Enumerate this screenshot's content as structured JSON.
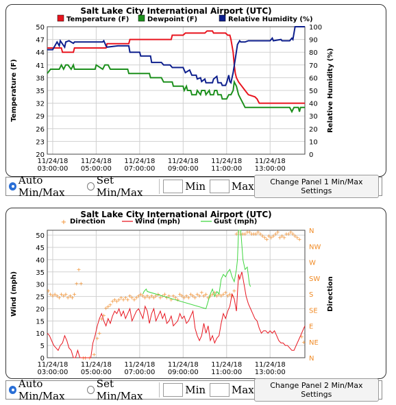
{
  "panel1": {
    "controls": {
      "auto_label": "Auto Min/Max",
      "set_label": "Set Min/Max",
      "min_label": "Min",
      "max_label": "Max",
      "button_label": "Change Panel 1 Min/Max Settings",
      "selected": "auto"
    }
  },
  "panel2": {
    "controls": {
      "auto_label": "Auto Min/Max",
      "set_label": "Set Min/Max",
      "min_label": "Min",
      "max_label": "Max",
      "button_label": "Change Panel 2 Min/Max Settings",
      "selected": "auto"
    }
  },
  "chart_data": [
    {
      "type": "line",
      "title": "Salt Lake City International Airport  (UTC)",
      "ylabel": "Temperature (F)",
      "y2label": "Relative Humidity (%)",
      "ylim": [
        20,
        50
      ],
      "yticks": [
        20,
        23,
        26,
        29,
        32,
        35,
        38,
        41,
        44,
        47,
        50
      ],
      "y2lim": [
        0,
        100
      ],
      "y2ticks": [
        0,
        10,
        20,
        30,
        40,
        50,
        60,
        70,
        80,
        90,
        100
      ],
      "xlim": [
        2.75,
        14.6
      ],
      "xticks": [
        {
          "x": 3,
          "label": [
            "11/24/18",
            "03:00:00"
          ]
        },
        {
          "x": 5,
          "label": [
            "11/24/18",
            "05:00:00"
          ]
        },
        {
          "x": 7,
          "label": [
            "11/24/18",
            "07:00:00"
          ]
        },
        {
          "x": 9,
          "label": [
            "11/24/18",
            "09:00:00"
          ]
        },
        {
          "x": 11,
          "label": [
            "11/24/18",
            "11:00:00"
          ]
        },
        {
          "x": 13,
          "label": [
            "11/24/18",
            "13:00:00"
          ]
        }
      ],
      "grid": true,
      "legend_position": "top",
      "series": [
        {
          "name": "Temperature (F)",
          "axis": "left",
          "color": "#e8141e",
          "x": [
            2.75,
            3.4,
            3.45,
            3.95,
            4.0,
            5.45,
            5.5,
            6.5,
            6.55,
            8.45,
            8.5,
            9.0,
            9.1,
            10.0,
            10.1,
            10.35,
            10.4,
            10.95,
            11.05,
            11.15,
            11.2,
            11.3,
            11.35,
            11.4,
            11.45,
            11.55,
            11.7,
            11.85,
            12.0,
            12.3,
            12.4,
            12.45,
            12.5,
            14.6
          ],
          "y": [
            45,
            45,
            44,
            44,
            45,
            45,
            46,
            46,
            47,
            47,
            48,
            48,
            48.5,
            48.5,
            49,
            49,
            48.5,
            48.5,
            48,
            48,
            47,
            44,
            41,
            39,
            38,
            37,
            36,
            35,
            34,
            33.5,
            33,
            32.5,
            32,
            32
          ]
        },
        {
          "name": "Dewpoint (F)",
          "axis": "left",
          "color": "#1c8f1c",
          "x": [
            2.75,
            2.9,
            3.0,
            3.3,
            3.4,
            3.5,
            3.6,
            3.7,
            3.85,
            3.95,
            4.0,
            4.95,
            5.0,
            5.3,
            5.4,
            5.55,
            5.65,
            6.45,
            6.5,
            7.45,
            7.5,
            8.0,
            8.1,
            8.5,
            8.55,
            9.0,
            9.05,
            9.15,
            9.2,
            9.35,
            9.4,
            9.6,
            9.65,
            9.8,
            9.85,
            10.0,
            10.05,
            10.2,
            10.25,
            10.4,
            10.45,
            10.55,
            10.6,
            10.75,
            10.8,
            11.0,
            11.1,
            11.2,
            11.3,
            11.35,
            11.45,
            11.55,
            11.65,
            11.75,
            11.85,
            12.0,
            12.5,
            13.9,
            14.0,
            14.1,
            14.3,
            14.35,
            14.4,
            14.6
          ],
          "y": [
            39,
            40,
            40,
            40,
            41,
            40,
            41,
            41,
            40,
            41,
            40,
            40,
            41,
            40,
            41,
            41,
            40,
            40,
            39,
            39,
            38,
            38,
            37,
            37,
            36,
            36,
            35,
            36,
            35,
            35,
            34,
            34,
            35,
            34,
            35,
            35,
            34,
            35,
            34,
            34,
            35,
            35,
            34,
            34,
            33,
            33,
            34,
            34,
            35,
            37,
            36,
            34,
            33,
            32,
            31,
            31,
            31,
            31,
            30,
            31,
            31,
            30,
            31,
            31
          ]
        },
        {
          "name": "Relative Humidity (%)",
          "axis": "right",
          "color": "#0c1e8c",
          "x": [
            2.75,
            3.0,
            3.2,
            3.3,
            3.35,
            3.55,
            3.6,
            3.75,
            3.95,
            4.0,
            5.3,
            5.35,
            5.45,
            5.5,
            6.0,
            6.5,
            6.55,
            7.0,
            7.05,
            7.5,
            7.55,
            8.0,
            8.1,
            8.4,
            8.5,
            9.0,
            9.1,
            9.3,
            9.4,
            9.6,
            9.65,
            9.8,
            9.85,
            10.0,
            10.05,
            10.35,
            10.4,
            10.55,
            10.6,
            10.75,
            10.8,
            10.95,
            11.0,
            11.1,
            11.15,
            11.2,
            11.3,
            11.4,
            11.5,
            11.6,
            11.65,
            11.85,
            12.0,
            12.5,
            13.0,
            13.1,
            13.15,
            13.5,
            13.55,
            13.9,
            14.0,
            14.05,
            14.15,
            14.2,
            14.6
          ],
          "y": [
            82,
            82,
            88,
            85,
            89,
            84,
            88,
            89,
            87,
            88,
            88,
            89,
            85,
            84,
            85,
            85,
            80,
            80,
            77,
            77,
            72,
            72,
            70,
            70,
            68,
            68,
            64,
            66,
            62,
            62,
            59,
            60,
            57,
            59,
            56,
            56,
            59,
            61,
            56,
            56,
            54,
            54,
            56,
            62,
            57,
            56,
            64,
            75,
            86,
            89,
            88,
            88,
            89,
            89,
            89,
            91,
            89,
            90,
            89,
            89,
            91,
            90,
            100,
            100,
            100
          ]
        }
      ]
    },
    {
      "type": "line",
      "title": "Salt Lake City International Airport  (UTC)",
      "ylabel": "Wind (mph)",
      "y2label": "Direction",
      "ylim": [
        0,
        52
      ],
      "yticks": [
        0,
        5,
        10,
        15,
        20,
        25,
        30,
        35,
        40,
        45,
        50
      ],
      "y2lim": [
        0,
        360
      ],
      "y2ticks": [
        {
          "v": 0,
          "label": "N"
        },
        {
          "v": 45,
          "label": "NE"
        },
        {
          "v": 90,
          "label": "E"
        },
        {
          "v": 135,
          "label": "SE"
        },
        {
          "v": 180,
          "label": "S"
        },
        {
          "v": 225,
          "label": "SW"
        },
        {
          "v": 270,
          "label": "W"
        },
        {
          "v": 315,
          "label": "NW"
        },
        {
          "v": 360,
          "label": "N"
        }
      ],
      "xlim": [
        2.75,
        14.6
      ],
      "xticks": [
        {
          "x": 3,
          "label": [
            "11/24/18",
            "03:00:00"
          ]
        },
        {
          "x": 5,
          "label": [
            "11/24/18",
            "05:00:00"
          ]
        },
        {
          "x": 7,
          "label": [
            "11/24/18",
            "07:00:00"
          ]
        },
        {
          "x": 9,
          "label": [
            "11/24/18",
            "09:00:00"
          ]
        },
        {
          "x": 11,
          "label": [
            "11/24/18",
            "11:00:00"
          ]
        },
        {
          "x": 13,
          "label": [
            "11/24/18",
            "13:00:00"
          ]
        }
      ],
      "grid": true,
      "legend_position": "top",
      "series": [
        {
          "name": "Direction",
          "axis": "right",
          "kind": "points",
          "color": "#f08a24",
          "x": [
            2.8,
            2.9,
            3.0,
            3.1,
            3.2,
            3.3,
            3.4,
            3.5,
            3.6,
            3.7,
            3.8,
            3.9,
            4.0,
            4.1,
            4.2,
            4.3,
            4.4,
            4.5,
            4.7,
            4.9,
            5.05,
            5.15,
            5.25,
            5.35,
            5.45,
            5.55,
            5.65,
            5.75,
            5.85,
            5.95,
            6.05,
            6.15,
            6.25,
            6.35,
            6.45,
            6.55,
            6.65,
            6.75,
            6.85,
            6.95,
            7.05,
            7.15,
            7.25,
            7.35,
            7.45,
            7.55,
            7.65,
            7.75,
            7.85,
            7.95,
            8.05,
            8.15,
            8.25,
            8.35,
            8.45,
            8.55,
            8.65,
            8.75,
            8.85,
            8.95,
            9.05,
            9.15,
            9.25,
            9.35,
            9.45,
            9.55,
            9.65,
            9.75,
            9.85,
            9.95,
            10.05,
            10.15,
            10.25,
            10.35,
            10.45,
            10.55,
            10.65,
            10.75,
            10.85,
            10.95,
            11.05,
            11.15,
            11.25,
            11.35,
            11.45,
            11.55,
            11.65,
            11.75,
            11.85,
            11.95,
            12.05,
            12.15,
            12.25,
            12.35,
            12.45,
            12.55,
            12.65,
            12.75,
            12.85,
            12.95,
            13.05,
            13.15,
            13.25,
            13.35,
            13.45,
            13.55,
            13.65,
            13.75,
            13.85,
            13.95,
            14.05,
            14.15,
            14.25,
            14.35,
            14.45,
            14.55
          ],
          "y": [
            190,
            180,
            175,
            180,
            175,
            170,
            180,
            175,
            180,
            170,
            175,
            170,
            180,
            210,
            250,
            210,
            0,
            0,
            0,
            10,
            55,
            70,
            110,
            120,
            140,
            145,
            150,
            160,
            165,
            160,
            165,
            170,
            165,
            170,
            165,
            175,
            170,
            165,
            170,
            175,
            180,
            175,
            170,
            175,
            170,
            175,
            170,
            175,
            180,
            170,
            175,
            180,
            170,
            175,
            165,
            175,
            170,
            165,
            180,
            175,
            170,
            175,
            170,
            180,
            175,
            170,
            180,
            175,
            185,
            175,
            180,
            170,
            175,
            180,
            185,
            175,
            180,
            175,
            180,
            185,
            175,
            180,
            175,
            190,
            350,
            355,
            350,
            350,
            350,
            355,
            355,
            350,
            350,
            350,
            355,
            350,
            345,
            340,
            335,
            345,
            340,
            345,
            350,
            355,
            340,
            345,
            340,
            350,
            350,
            355,
            350,
            345,
            340,
            335,
            60,
            45
          ]
        },
        {
          "name": "Wind (mph)",
          "axis": "left",
          "color": "#e8141e",
          "x": [
            2.75,
            2.85,
            2.95,
            3.05,
            3.15,
            3.25,
            3.35,
            3.45,
            3.55,
            3.65,
            3.75,
            3.85,
            3.95,
            4.05,
            4.15,
            4.25,
            4.3,
            4.45,
            4.55,
            4.65,
            4.75,
            4.85,
            4.95,
            5.05,
            5.15,
            5.25,
            5.35,
            5.45,
            5.55,
            5.65,
            5.75,
            5.85,
            5.95,
            6.05,
            6.15,
            6.25,
            6.35,
            6.45,
            6.55,
            6.65,
            6.75,
            6.85,
            6.95,
            7.05,
            7.15,
            7.25,
            7.35,
            7.45,
            7.55,
            7.65,
            7.75,
            7.85,
            7.95,
            8.05,
            8.15,
            8.25,
            8.35,
            8.45,
            8.55,
            8.65,
            8.75,
            8.85,
            8.95,
            9.05,
            9.15,
            9.25,
            9.35,
            9.45,
            9.55,
            9.65,
            9.75,
            9.85,
            9.95,
            10.05,
            10.15,
            10.25,
            10.35,
            10.45,
            10.55,
            10.65,
            10.75,
            10.85,
            10.95,
            11.05,
            11.15,
            11.25,
            11.35,
            11.45,
            11.55,
            11.6,
            11.7,
            11.8,
            11.9,
            12.0,
            12.1,
            12.2,
            12.3,
            12.4,
            12.5,
            12.6,
            12.7,
            12.8,
            12.9,
            13.0,
            13.1,
            13.2,
            13.3,
            13.4,
            13.5,
            13.6,
            13.7,
            13.8,
            13.9,
            14.0,
            14.1,
            14.2,
            14.3,
            14.4,
            14.5,
            14.6
          ],
          "y": [
            10,
            9,
            7,
            5,
            4,
            3,
            5,
            6,
            9,
            7,
            4,
            3,
            0,
            0,
            3,
            0,
            0,
            0,
            0,
            0,
            0,
            6,
            9,
            13,
            16,
            18,
            15,
            13,
            16,
            14,
            17,
            19,
            18,
            20,
            17,
            19,
            16,
            18,
            20,
            15,
            17,
            19,
            20,
            18,
            16,
            21,
            19,
            14,
            18,
            20,
            15,
            17,
            19,
            16,
            18,
            14,
            15,
            17,
            13,
            14,
            15,
            18,
            16,
            17,
            14,
            15,
            17,
            19,
            12,
            9,
            7,
            9,
            14,
            10,
            13,
            7,
            9,
            6,
            8,
            9,
            14,
            18,
            16,
            19,
            21,
            26,
            24,
            19,
            34,
            32,
            35,
            30,
            25,
            22,
            20,
            18,
            16,
            15,
            12,
            10,
            11,
            11,
            10,
            11,
            10,
            11,
            9,
            7,
            6,
            6,
            5,
            5,
            4,
            3,
            3,
            5,
            7,
            9,
            11,
            13
          ]
        },
        {
          "name": "Gust (mph)",
          "axis": "left",
          "color": "#3ed63e",
          "x": [
            7.15,
            7.2,
            7.3,
            7.35,
            10.05,
            10.15,
            10.25,
            10.35,
            10.45,
            10.55,
            10.65,
            10.75,
            10.85,
            10.95,
            11.05,
            11.15,
            11.25,
            11.35,
            11.45,
            11.5,
            11.55,
            11.65,
            11.75,
            11.85,
            11.95,
            12.05,
            12.1
          ],
          "y": [
            26,
            27,
            28,
            27,
            20,
            23,
            26,
            28,
            25,
            27,
            26,
            32,
            34,
            33,
            35,
            36,
            33,
            31,
            36,
            40,
            52,
            52,
            40,
            36,
            37,
            30,
            29
          ]
        }
      ]
    }
  ]
}
